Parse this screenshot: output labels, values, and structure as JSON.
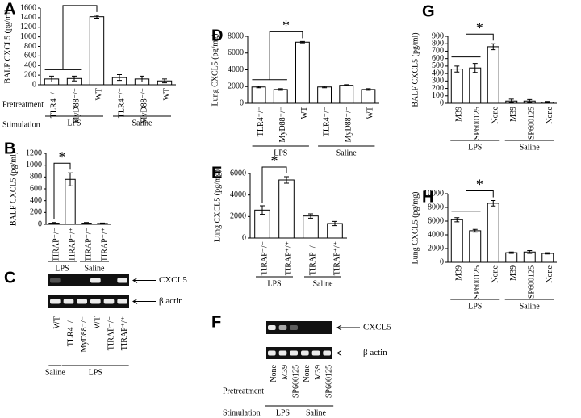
{
  "chart_data": [
    {
      "type": "bar",
      "label": "A",
      "ylabel": "BALF CXCL5 (pg/ml)",
      "categories": [
        "TLR4⁻/⁻",
        "MyD88⁻/⁻",
        "WT",
        "TLR4⁻/⁻",
        "MyD88⁻/⁻",
        "WT"
      ],
      "values": [
        120,
        130,
        1420,
        150,
        120,
        80
      ],
      "errors": [
        60,
        50,
        30,
        60,
        60,
        40
      ],
      "ylim": [
        0,
        1600
      ],
      "yticks": [
        0,
        200,
        400,
        600,
        800,
        1000,
        1200,
        1400,
        1600
      ],
      "groups": [
        "LPS",
        "Saline"
      ],
      "row_labels": [
        "Pretreatment",
        "Stimulation"
      ],
      "annotation": "*"
    },
    {
      "type": "bar",
      "label": "B",
      "ylabel": "BALF CXCL5 (pg/ml)",
      "categories": [
        "TIRAP⁻/⁻",
        "TIRAP⁺/⁺",
        "TIRAP⁻/⁻",
        "TIRAP⁺/⁺"
      ],
      "values": [
        20,
        760,
        20,
        15
      ],
      "errors": [
        10,
        110,
        10,
        8
      ],
      "ylim": [
        0,
        1200
      ],
      "yticks": [
        0,
        200,
        400,
        600,
        800,
        1000,
        1200
      ],
      "groups": [
        "LPS",
        "Saline"
      ],
      "annotation": "*"
    },
    {
      "type": "gel",
      "label": "C",
      "lanes": [
        "WT",
        "TLR4⁻/⁻",
        "MyD88⁻/⁻",
        "WT",
        "TIRAP⁻/⁻",
        "TIRAP⁺/⁺"
      ],
      "bands": [
        "CXCL5",
        "β actin"
      ],
      "groups": [
        "Saline",
        "LPS"
      ]
    },
    {
      "type": "bar",
      "label": "D",
      "ylabel": "Lung CXCL5 (pg/mg)",
      "categories": [
        "TLR4⁻/⁻",
        "MyD88⁻/⁻",
        "WT",
        "TLR4⁻/⁻",
        "MyD88⁻/⁻",
        "WT"
      ],
      "values": [
        1950,
        1650,
        7300,
        1950,
        2150,
        1650
      ],
      "errors": [
        100,
        100,
        80,
        100,
        80,
        100
      ],
      "ylim": [
        0,
        8000
      ],
      "yticks": [
        0,
        2000,
        4000,
        6000,
        8000
      ],
      "groups": [
        "LPS",
        "Saline"
      ],
      "annotation": "*"
    },
    {
      "type": "bar",
      "label": "E",
      "ylabel": "Lung CXCL5 (pg/mg)",
      "categories": [
        "TIRAP⁻/⁻",
        "TIRAP⁺/⁺",
        "TIRAP⁻/⁻",
        "TIRAP⁺/⁺"
      ],
      "values": [
        2600,
        5400,
        2050,
        1350
      ],
      "errors": [
        400,
        300,
        200,
        200
      ],
      "ylim": [
        0,
        6000
      ],
      "yticks": [
        0,
        2000,
        4000,
        6000
      ],
      "groups": [
        "LPS",
        "Saline"
      ],
      "annotation": "*"
    },
    {
      "type": "gel",
      "label": "F",
      "lanes": [
        "None",
        "M39",
        "SP600125",
        "None",
        "M39",
        "SP600125"
      ],
      "bands": [
        "CXCL5",
        "β actin"
      ],
      "groups": [
        "LPS",
        "Saline"
      ],
      "row_labels": [
        "Pretreatment",
        "Stimulation"
      ]
    },
    {
      "type": "bar",
      "label": "G",
      "ylabel": "BALF CXCL5 (pg/ml)",
      "categories": [
        "M39",
        "SP600125",
        "None",
        "M39",
        "SP600125",
        "None"
      ],
      "values": [
        460,
        475,
        760,
        30,
        30,
        15
      ],
      "errors": [
        40,
        60,
        40,
        25,
        20,
        10
      ],
      "ylim": [
        0,
        900
      ],
      "yticks": [
        0,
        100,
        200,
        300,
        400,
        500,
        600,
        700,
        800,
        900
      ],
      "groups": [
        "LPS",
        "Saline"
      ],
      "annotation": "*"
    },
    {
      "type": "bar",
      "label": "H",
      "ylabel": "Lung CXCL5 (pg/mg)",
      "categories": [
        "M39",
        "SP600125",
        "None",
        "M39",
        "SP600125",
        "None"
      ],
      "values": [
        6200,
        4600,
        8600,
        1400,
        1500,
        1300
      ],
      "errors": [
        300,
        200,
        400,
        100,
        200,
        100
      ],
      "ylim": [
        0,
        10000
      ],
      "yticks": [
        0,
        2000,
        4000,
        6000,
        8000,
        10000
      ],
      "groups": [
        "LPS",
        "Saline"
      ],
      "annotation": "*"
    }
  ]
}
